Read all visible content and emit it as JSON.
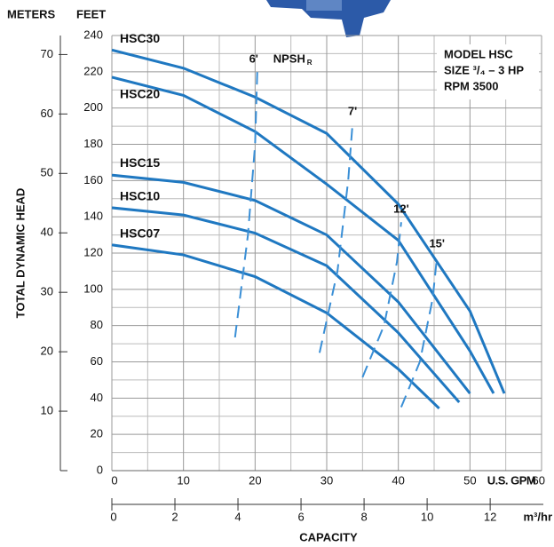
{
  "chart_data": {
    "type": "line",
    "y_unit_label": "FEET",
    "y2_unit_label": "METERS",
    "ylabel": "TOTAL DYNAMIC HEAD",
    "xlabel": "CAPACITY",
    "x_unit_label": "U.S. GPM",
    "x2_unit_label": "m³/hr",
    "model_lines": [
      "MODEL HSC",
      "SIZE ³/₄ – 3 HP",
      "RPM 3500"
    ],
    "xlim": [
      0,
      60
    ],
    "xticks": [
      0,
      10,
      20,
      30,
      40,
      50,
      60
    ],
    "x_minor_grid": [
      5,
      15,
      25,
      35,
      45,
      55
    ],
    "ylim": [
      0,
      240
    ],
    "yticks": [
      0,
      20,
      40,
      60,
      80,
      100,
      120,
      140,
      160,
      180,
      200,
      220,
      240
    ],
    "y_minor_grid": [
      10,
      30,
      50,
      70,
      90,
      110,
      130,
      150,
      170,
      190,
      210,
      230
    ],
    "y2lim": [
      0,
      73.2
    ],
    "y2ticks": [
      10,
      20,
      30,
      40,
      50,
      60,
      70
    ],
    "x2lim": [
      0,
      13.63
    ],
    "x2ticks": [
      0,
      2,
      4,
      6,
      8,
      10,
      12
    ],
    "grid": true,
    "series": [
      {
        "name": "HSC30",
        "color": "#1f78c1",
        "x": [
          0,
          10,
          20,
          30,
          40,
          50,
          54.8
        ],
        "values": [
          232,
          222,
          206,
          186,
          147,
          88,
          42.6
        ]
      },
      {
        "name": "HSC20",
        "color": "#1f78c1",
        "x": [
          0,
          10,
          20,
          30,
          40,
          50,
          53.3
        ],
        "values": [
          217,
          207,
          187,
          158,
          127,
          66,
          42.6
        ]
      },
      {
        "name": "HSC15",
        "color": "#1f78c1",
        "x": [
          0,
          10,
          20,
          30,
          40,
          50
        ],
        "values": [
          163,
          159,
          149,
          130,
          93,
          42.6
        ]
      },
      {
        "name": "HSC10",
        "color": "#1f78c1",
        "x": [
          0,
          10,
          20,
          30,
          40,
          48.5
        ],
        "values": [
          145,
          141,
          131,
          113,
          76,
          37.7
        ]
      },
      {
        "name": "HSC07",
        "color": "#1f78c1",
        "x": [
          0,
          10,
          20,
          30,
          40,
          45.7
        ],
        "values": [
          124.5,
          119,
          107,
          87,
          56,
          34.3
        ]
      }
    ],
    "npsh_title": "NPSH",
    "npsh_subscript": "R",
    "npsh_lines": [
      {
        "name": "6'",
        "color": "#3a8fd6",
        "x": [
          17.2,
          19,
          20,
          20.3
        ],
        "values": [
          73.5,
          130,
          180,
          220
        ]
      },
      {
        "name": "7'",
        "color": "#3a8fd6",
        "x": [
          29,
          31.5,
          33,
          33.6
        ],
        "values": [
          65,
          110,
          160,
          191
        ]
      },
      {
        "name": "12'",
        "color": "#3a8fd6",
        "x": [
          35,
          38,
          39.8,
          40.4
        ],
        "values": [
          51.5,
          80,
          115,
          137
        ]
      },
      {
        "name": "15'",
        "color": "#3a8fd6",
        "x": [
          40.4,
          43,
          44.8,
          45.4
        ],
        "values": [
          35,
          60,
          95,
          118
        ]
      }
    ]
  }
}
